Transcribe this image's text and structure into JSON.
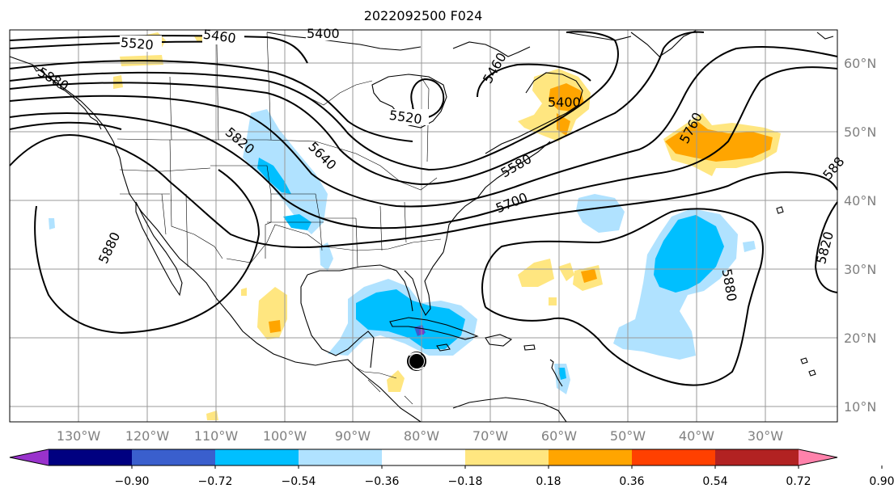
{
  "title": "2022092500 F024",
  "map": {
    "lon_labels": [
      "130°W",
      "120°W",
      "110°W",
      "100°W",
      "90°W",
      "80°W",
      "70°W",
      "60°W",
      "50°W",
      "40°W",
      "30°W"
    ],
    "lat_labels": [
      "60°N",
      "50°N",
      "40°N",
      "30°N",
      "20°N",
      "10°N"
    ],
    "contour_labels": [
      "5520",
      "5460",
      "5400",
      "5460",
      "5400",
      "5520",
      "5820",
      "5640",
      "5580",
      "5700",
      "5760",
      "588",
      "5880",
      "5880",
      "5820",
      "5880"
    ]
  },
  "colorbar": {
    "ticks": [
      "−0.90",
      "−0.72",
      "−0.54",
      "−0.36",
      "−0.18",
      "0.18",
      "0.36",
      "0.54",
      "0.72",
      "0.90"
    ],
    "colors": [
      "#9932cc",
      "#000080",
      "#3a5fcd",
      "#00bfff",
      "#b0e2ff",
      "#ffffff",
      "#ffe680",
      "#ffa500",
      "#ff4000",
      "#b22222",
      "#ff82ab"
    ]
  },
  "legend_colors": {
    "light_blue": "#b0e2ff",
    "blue": "#00bfff",
    "mid_blue": "#3a5fcd",
    "purple": "#7b3fc4",
    "yellow": "#ffe680",
    "orange": "#ffa500",
    "red_orange": "#ff4000"
  },
  "storm_marker": "hurricane-icon"
}
